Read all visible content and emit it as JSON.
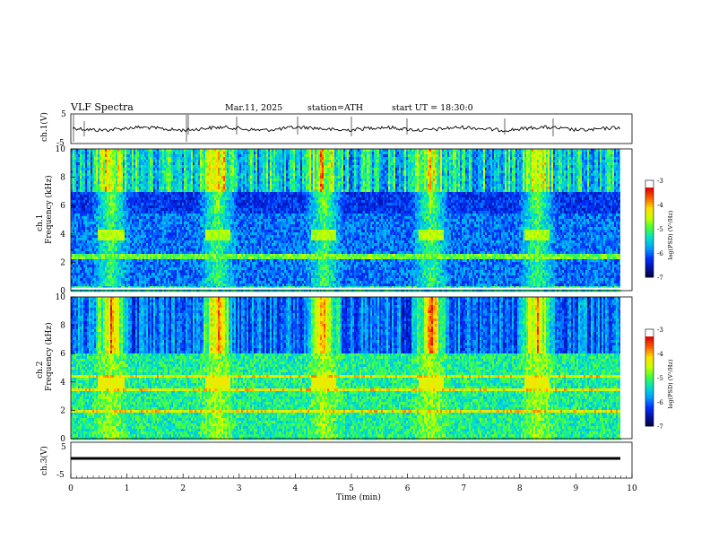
{
  "header": {
    "title": "VLF Spectra",
    "date": "Mar.11, 2025",
    "station": "station=ATH",
    "start_ut": "start UT =  18:30:0"
  },
  "colors": {
    "waveform": "#000000",
    "colormap": [
      "#000033",
      "#0010a0",
      "#0030ff",
      "#00a0ff",
      "#00e0d0",
      "#40ff40",
      "#c8ff00",
      "#ffe000",
      "#ff6000",
      "#e00000",
      "#ffffff"
    ]
  },
  "chart_data": [
    {
      "type": "line",
      "panel": "ch1-waveform",
      "ylabel": "ch.1(V)",
      "ylim": [
        -5,
        5
      ],
      "yticks": [
        "5",
        "-5"
      ],
      "xlim": [
        0,
        10
      ],
      "description_values": "noisy baseline near 0 V with spikes"
    },
    {
      "type": "heatmap",
      "panel": "ch1-spectrogram",
      "ylabel": "ch.1\nFrequency (kHz)",
      "ylabel_line1": "ch.1",
      "ylabel_line2": "Frequency (kHz)",
      "ylim": [
        0,
        10
      ],
      "yticks": [
        "0",
        "2",
        "4",
        "6",
        "8",
        "10"
      ],
      "xlim": [
        0,
        10
      ],
      "colorbar": {
        "label": "log(PSD) (V²/Hz)",
        "range": [
          -7,
          -3
        ],
        "ticks": [
          "-3",
          "-4",
          "-5",
          "-6",
          "-7"
        ]
      },
      "bursts_min": [
        0.7,
        2.6,
        4.5,
        6.4,
        8.3
      ]
    },
    {
      "type": "heatmap",
      "panel": "ch2-spectrogram",
      "ylabel_line1": "ch.2",
      "ylabel_line2": "Frequency (kHz)",
      "ylim": [
        0,
        10
      ],
      "yticks": [
        "0",
        "2",
        "4",
        "6",
        "8",
        "10"
      ],
      "xlim": [
        0,
        10
      ],
      "colorbar": {
        "label": "log(PSD) (V²/Hz)",
        "range": [
          -7,
          -3
        ],
        "ticks": [
          "-3",
          "-4",
          "-5",
          "-6",
          "-7"
        ]
      },
      "bursts_min": [
        0.7,
        2.6,
        4.5,
        6.4,
        8.3
      ]
    },
    {
      "type": "line",
      "panel": "ch3-waveform",
      "ylabel": "ch.3(V)",
      "ylim": [
        -5,
        5
      ],
      "yticks": [
        "5",
        "-5"
      ],
      "xlim": [
        0,
        10
      ],
      "description_values": "flat line near -1 V"
    }
  ],
  "x_axis": {
    "label": "Time (min)",
    "ticks": [
      "0",
      "1",
      "2",
      "3",
      "4",
      "5",
      "6",
      "7",
      "8",
      "9",
      "10"
    ]
  },
  "colorbar_label": "log(PSD) (V²/Hz)",
  "colorbar_ticks": [
    "-3",
    "-4",
    "-5",
    "-6",
    "-7"
  ]
}
